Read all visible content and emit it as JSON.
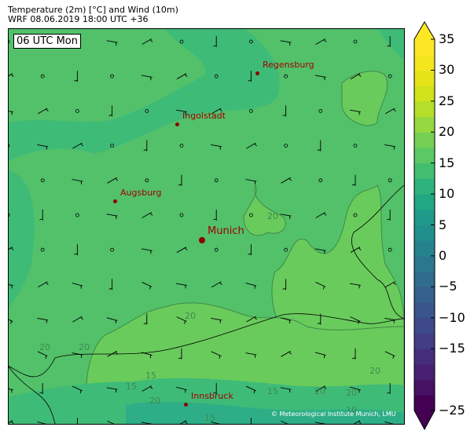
{
  "header": {
    "title": "Temperature (2m) [°C] and Wind (10m)",
    "subtitle": "WRF 08.06.2019 18:00 UTC +36"
  },
  "map": {
    "valid_time_label": "06 UTC Mon",
    "cities": [
      {
        "name": "Regensburg"
      },
      {
        "name": "Ingolstadt"
      },
      {
        "name": "Augsburg"
      },
      {
        "name": "Munich"
      },
      {
        "name": "Innsbruck"
      }
    ],
    "contour_labels": [
      "20",
      "20",
      "15",
      "20",
      "20",
      "15",
      "20",
      "15",
      "20",
      "10",
      "20",
      "20",
      "15"
    ],
    "copyright": "© Meteorological Institute Munich, LMU"
  },
  "colorbar": {
    "min": -25,
    "max": 35,
    "step": 2.5,
    "extend": "both",
    "colormap": "viridis",
    "ticks": [
      "35",
      "30",
      "25",
      "20",
      "15",
      "10",
      "5",
      "0",
      "−5",
      "−10",
      "−15",
      "−25"
    ]
  }
}
